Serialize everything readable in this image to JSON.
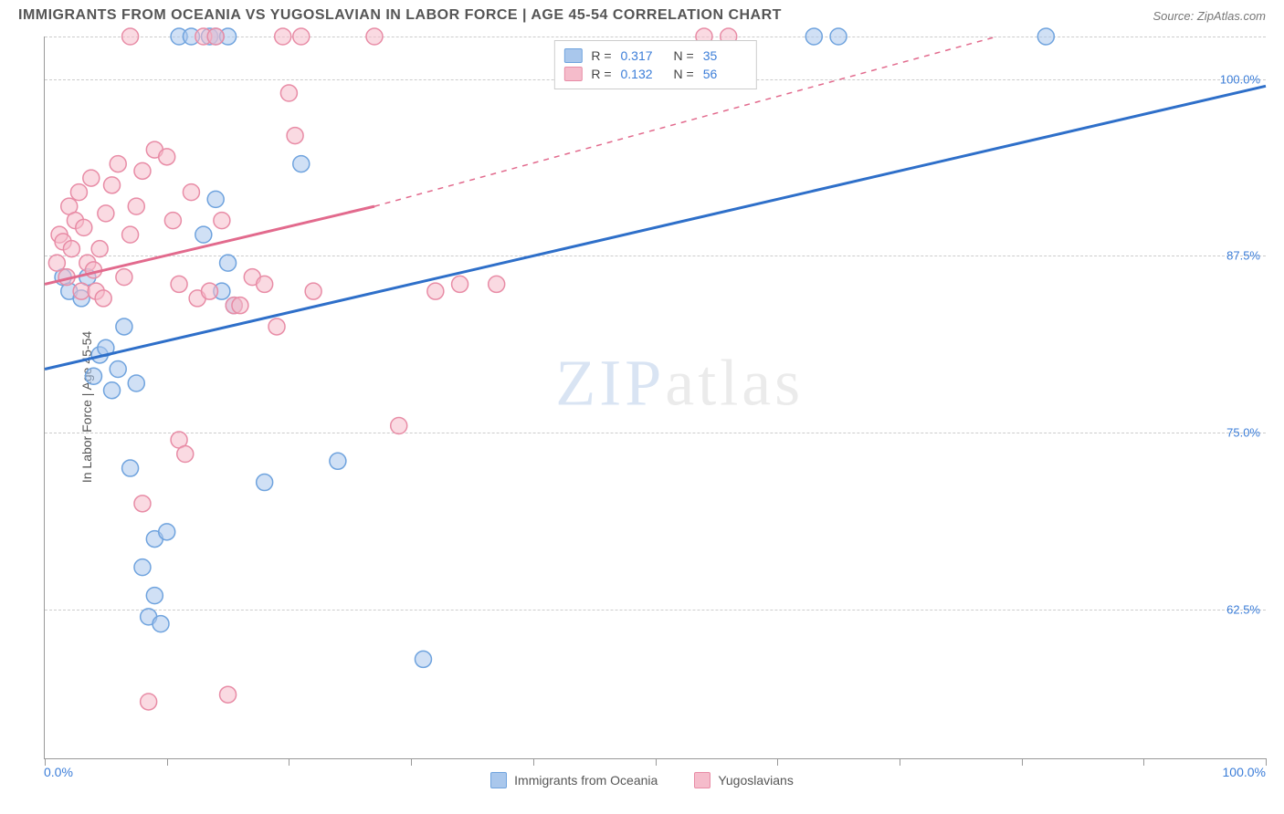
{
  "title": "IMMIGRANTS FROM OCEANIA VS YUGOSLAVIAN IN LABOR FORCE | AGE 45-54 CORRELATION CHART",
  "source": "Source: ZipAtlas.com",
  "watermark": {
    "zip": "ZIP",
    "atlas": "atlas"
  },
  "chart": {
    "type": "scatter",
    "background_color": "#ffffff",
    "grid_color": "#cccccc",
    "axis_color": "#999999",
    "tick_label_color": "#3b7dd8",
    "y_axis_title": "In Labor Force | Age 45-54",
    "x_axis": {
      "min": 0,
      "max": 100,
      "ticks": [
        0,
        10,
        20,
        30,
        40,
        50,
        60,
        70,
        80,
        90,
        100
      ],
      "labels": [
        {
          "pos": 0,
          "text": "0.0%"
        },
        {
          "pos": 100,
          "text": "100.0%"
        }
      ]
    },
    "y_axis": {
      "min": 52,
      "max": 103,
      "gridlines": [
        62.5,
        75.0,
        87.5,
        100.0,
        103.0
      ],
      "labels": [
        {
          "pos": 62.5,
          "text": "62.5%"
        },
        {
          "pos": 75.0,
          "text": "75.0%"
        },
        {
          "pos": 87.5,
          "text": "87.5%"
        },
        {
          "pos": 100.0,
          "text": "100.0%"
        }
      ]
    },
    "series": [
      {
        "name": "Immigrants from Oceania",
        "fill_color": "#a9c7ec",
        "stroke_color": "#6fa3de",
        "line_color": "#2e6fc9",
        "marker_radius": 9,
        "marker_opacity": 0.55,
        "r_value": "0.317",
        "n_value": "35",
        "regression": {
          "start": {
            "x": 0,
            "y": 79.5
          },
          "solid_end": {
            "x": 100,
            "y": 99.5
          },
          "dashed_end": null,
          "line_width": 3
        },
        "points": [
          {
            "x": 1.5,
            "y": 86
          },
          {
            "x": 2,
            "y": 85
          },
          {
            "x": 3,
            "y": 84.5
          },
          {
            "x": 3.5,
            "y": 86
          },
          {
            "x": 4,
            "y": 79
          },
          {
            "x": 4.5,
            "y": 80.5
          },
          {
            "x": 5,
            "y": 81
          },
          {
            "x": 5.5,
            "y": 78
          },
          {
            "x": 6,
            "y": 79.5
          },
          {
            "x": 6.5,
            "y": 82.5
          },
          {
            "x": 7,
            "y": 72.5
          },
          {
            "x": 7.5,
            "y": 78.5
          },
          {
            "x": 8,
            "y": 65.5
          },
          {
            "x": 8.5,
            "y": 62
          },
          {
            "x": 9,
            "y": 63.5
          },
          {
            "x": 9.5,
            "y": 61.5
          },
          {
            "x": 9,
            "y": 67.5
          },
          {
            "x": 10,
            "y": 68
          },
          {
            "x": 11,
            "y": 103
          },
          {
            "x": 12,
            "y": 103
          },
          {
            "x": 13.5,
            "y": 103
          },
          {
            "x": 14,
            "y": 103
          },
          {
            "x": 15,
            "y": 103
          },
          {
            "x": 14,
            "y": 91.5
          },
          {
            "x": 13,
            "y": 89
          },
          {
            "x": 14.5,
            "y": 85
          },
          {
            "x": 15,
            "y": 87
          },
          {
            "x": 15.5,
            "y": 84
          },
          {
            "x": 18,
            "y": 71.5
          },
          {
            "x": 21,
            "y": 94
          },
          {
            "x": 24,
            "y": 73
          },
          {
            "x": 31,
            "y": 59
          },
          {
            "x": 63,
            "y": 103
          },
          {
            "x": 65,
            "y": 103
          },
          {
            "x": 82,
            "y": 103
          }
        ]
      },
      {
        "name": "Yugoslavians",
        "fill_color": "#f5bccb",
        "stroke_color": "#e88ca6",
        "line_color": "#e26a8d",
        "marker_radius": 9,
        "marker_opacity": 0.55,
        "r_value": "0.132",
        "n_value": "56",
        "regression": {
          "start": {
            "x": 0,
            "y": 85.5
          },
          "solid_end": {
            "x": 27,
            "y": 91
          },
          "dashed_end": {
            "x": 78,
            "y": 103
          },
          "line_width": 3
        },
        "points": [
          {
            "x": 1,
            "y": 87
          },
          {
            "x": 1.2,
            "y": 89
          },
          {
            "x": 1.5,
            "y": 88.5
          },
          {
            "x": 1.8,
            "y": 86
          },
          {
            "x": 2,
            "y": 91
          },
          {
            "x": 2.2,
            "y": 88
          },
          {
            "x": 2.5,
            "y": 90
          },
          {
            "x": 2.8,
            "y": 92
          },
          {
            "x": 3,
            "y": 85
          },
          {
            "x": 3.2,
            "y": 89.5
          },
          {
            "x": 3.5,
            "y": 87
          },
          {
            "x": 3.8,
            "y": 93
          },
          {
            "x": 4,
            "y": 86.5
          },
          {
            "x": 4.2,
            "y": 85
          },
          {
            "x": 4.5,
            "y": 88
          },
          {
            "x": 4.8,
            "y": 84.5
          },
          {
            "x": 5,
            "y": 90.5
          },
          {
            "x": 5.5,
            "y": 92.5
          },
          {
            "x": 6,
            "y": 94
          },
          {
            "x": 6.5,
            "y": 86
          },
          {
            "x": 7,
            "y": 89
          },
          {
            "x": 7.5,
            "y": 91
          },
          {
            "x": 8,
            "y": 93.5
          },
          {
            "x": 7,
            "y": 103
          },
          {
            "x": 8,
            "y": 70
          },
          {
            "x": 8.5,
            "y": 56
          },
          {
            "x": 9,
            "y": 95
          },
          {
            "x": 10,
            "y": 94.5
          },
          {
            "x": 10.5,
            "y": 90
          },
          {
            "x": 11,
            "y": 85.5
          },
          {
            "x": 11,
            "y": 74.5
          },
          {
            "x": 11.5,
            "y": 73.5
          },
          {
            "x": 12,
            "y": 92
          },
          {
            "x": 12.5,
            "y": 84.5
          },
          {
            "x": 13,
            "y": 103
          },
          {
            "x": 13.5,
            "y": 85
          },
          {
            "x": 14,
            "y": 103
          },
          {
            "x": 14.5,
            "y": 90
          },
          {
            "x": 15,
            "y": 56.5
          },
          {
            "x": 15.5,
            "y": 84
          },
          {
            "x": 16,
            "y": 84
          },
          {
            "x": 17,
            "y": 86
          },
          {
            "x": 18,
            "y": 85.5
          },
          {
            "x": 19,
            "y": 82.5
          },
          {
            "x": 19.5,
            "y": 103
          },
          {
            "x": 20,
            "y": 99
          },
          {
            "x": 20.5,
            "y": 96
          },
          {
            "x": 21,
            "y": 103
          },
          {
            "x": 22,
            "y": 85
          },
          {
            "x": 27,
            "y": 103
          },
          {
            "x": 29,
            "y": 75.5
          },
          {
            "x": 32,
            "y": 85
          },
          {
            "x": 34,
            "y": 85.5
          },
          {
            "x": 37,
            "y": 85.5
          },
          {
            "x": 54,
            "y": 103
          },
          {
            "x": 56,
            "y": 103
          }
        ]
      }
    ]
  },
  "bottom_legend": [
    {
      "label": "Immigrants from Oceania",
      "fill": "#a9c7ec",
      "stroke": "#6fa3de"
    },
    {
      "label": "Yugoslavians",
      "fill": "#f5bccb",
      "stroke": "#e88ca6"
    }
  ]
}
